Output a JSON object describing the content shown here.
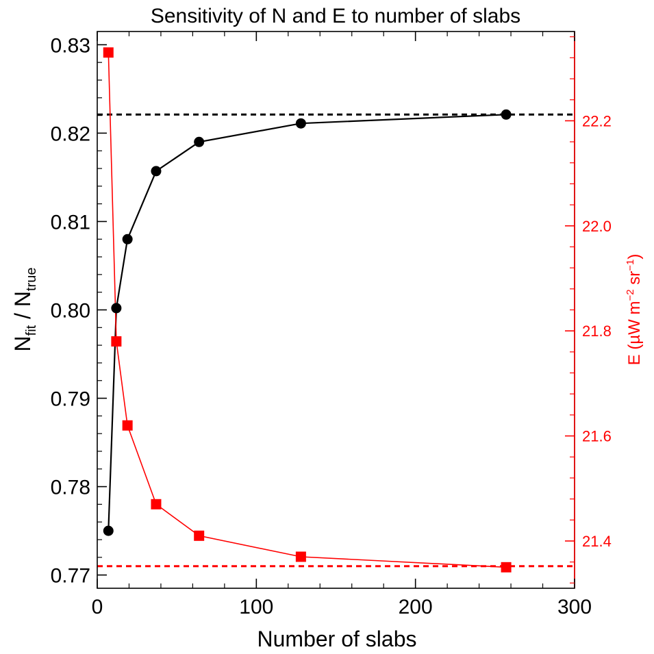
{
  "chart_data": {
    "type": "line",
    "title": "Sensitivity of N and E to number of slabs",
    "xlabel": "Number of slabs",
    "ylabel_left": {
      "base": "N",
      "sub1": "fit",
      "middle": " / N",
      "sub2": "true"
    },
    "ylabel_right": {
      "prefix": "E (µW m",
      "sup1": "−2",
      "middle": " sr",
      "sup2": "−1",
      "suffix": ")"
    },
    "xlim": [
      0,
      300
    ],
    "ylim_left": [
      0.7685,
      0.8315
    ],
    "ylim_right": [
      21.31,
      22.37
    ],
    "x_ticks": [
      {
        "value": 0,
        "label": "0"
      },
      {
        "value": 100,
        "label": "100"
      },
      {
        "value": 200,
        "label": "200"
      },
      {
        "value": 300,
        "label": "300"
      }
    ],
    "y_left_ticks": [
      {
        "value": 0.77,
        "label": "0.77"
      },
      {
        "value": 0.78,
        "label": "0.78"
      },
      {
        "value": 0.79,
        "label": "0.79"
      },
      {
        "value": 0.8,
        "label": "0.80"
      },
      {
        "value": 0.81,
        "label": "0.81"
      },
      {
        "value": 0.82,
        "label": "0.82"
      },
      {
        "value": 0.83,
        "label": "0.83"
      }
    ],
    "y_right_ticks": [
      {
        "value": 21.4,
        "label": "21.4"
      },
      {
        "value": 21.6,
        "label": "21.6"
      },
      {
        "value": 21.8,
        "label": "21.8"
      },
      {
        "value": 22.0,
        "label": "22.0"
      },
      {
        "value": 22.2,
        "label": "22.2"
      }
    ],
    "series": [
      {
        "axis": "left",
        "color": "#000000",
        "marker": "circle",
        "x": [
          7,
          12,
          19,
          37,
          64,
          128,
          257
        ],
        "y": [
          0.775,
          0.8002,
          0.808,
          0.8157,
          0.819,
          0.8211,
          0.8221
        ]
      },
      {
        "axis": "right",
        "color": "#ff0000",
        "marker": "square",
        "x": [
          7,
          12,
          19,
          37,
          64,
          128,
          257
        ],
        "y": [
          22.33,
          21.78,
          21.62,
          21.47,
          21.41,
          21.37,
          21.35
        ]
      }
    ],
    "reference_lines": [
      {
        "axis": "left",
        "y": 0.8221,
        "color": "#000000",
        "style": "dashed"
      },
      {
        "axis": "right",
        "y": 21.352,
        "color": "#ff0000",
        "style": "dashed"
      }
    ],
    "colors": {
      "left_axis": "#000000",
      "right_axis": "#ff0000"
    }
  }
}
